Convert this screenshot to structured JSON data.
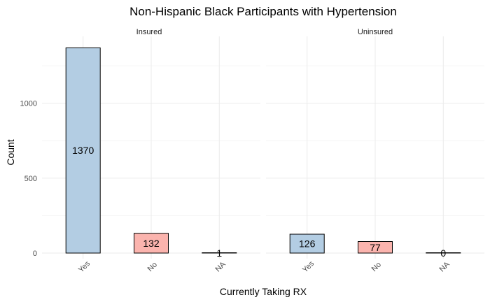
{
  "chart_data": {
    "type": "bar",
    "title": "Non-Hispanic Black Participants with Hypertension",
    "xlabel": "Currently Taking RX",
    "ylabel": "Count",
    "categories": [
      "Yes",
      "No",
      "NA"
    ],
    "facets": [
      {
        "name": "Insured",
        "values": [
          1370,
          132,
          1
        ]
      },
      {
        "name": "Uninsured",
        "values": [
          126,
          77,
          0
        ]
      }
    ],
    "ylim": [
      0,
      1400
    ],
    "y_ticks": [
      0,
      500,
      1000
    ],
    "colors": {
      "Yes": "#b3cde3",
      "No": "#fbb4ae",
      "NA": "#ccebc5"
    },
    "grid": true,
    "legend": "none"
  }
}
